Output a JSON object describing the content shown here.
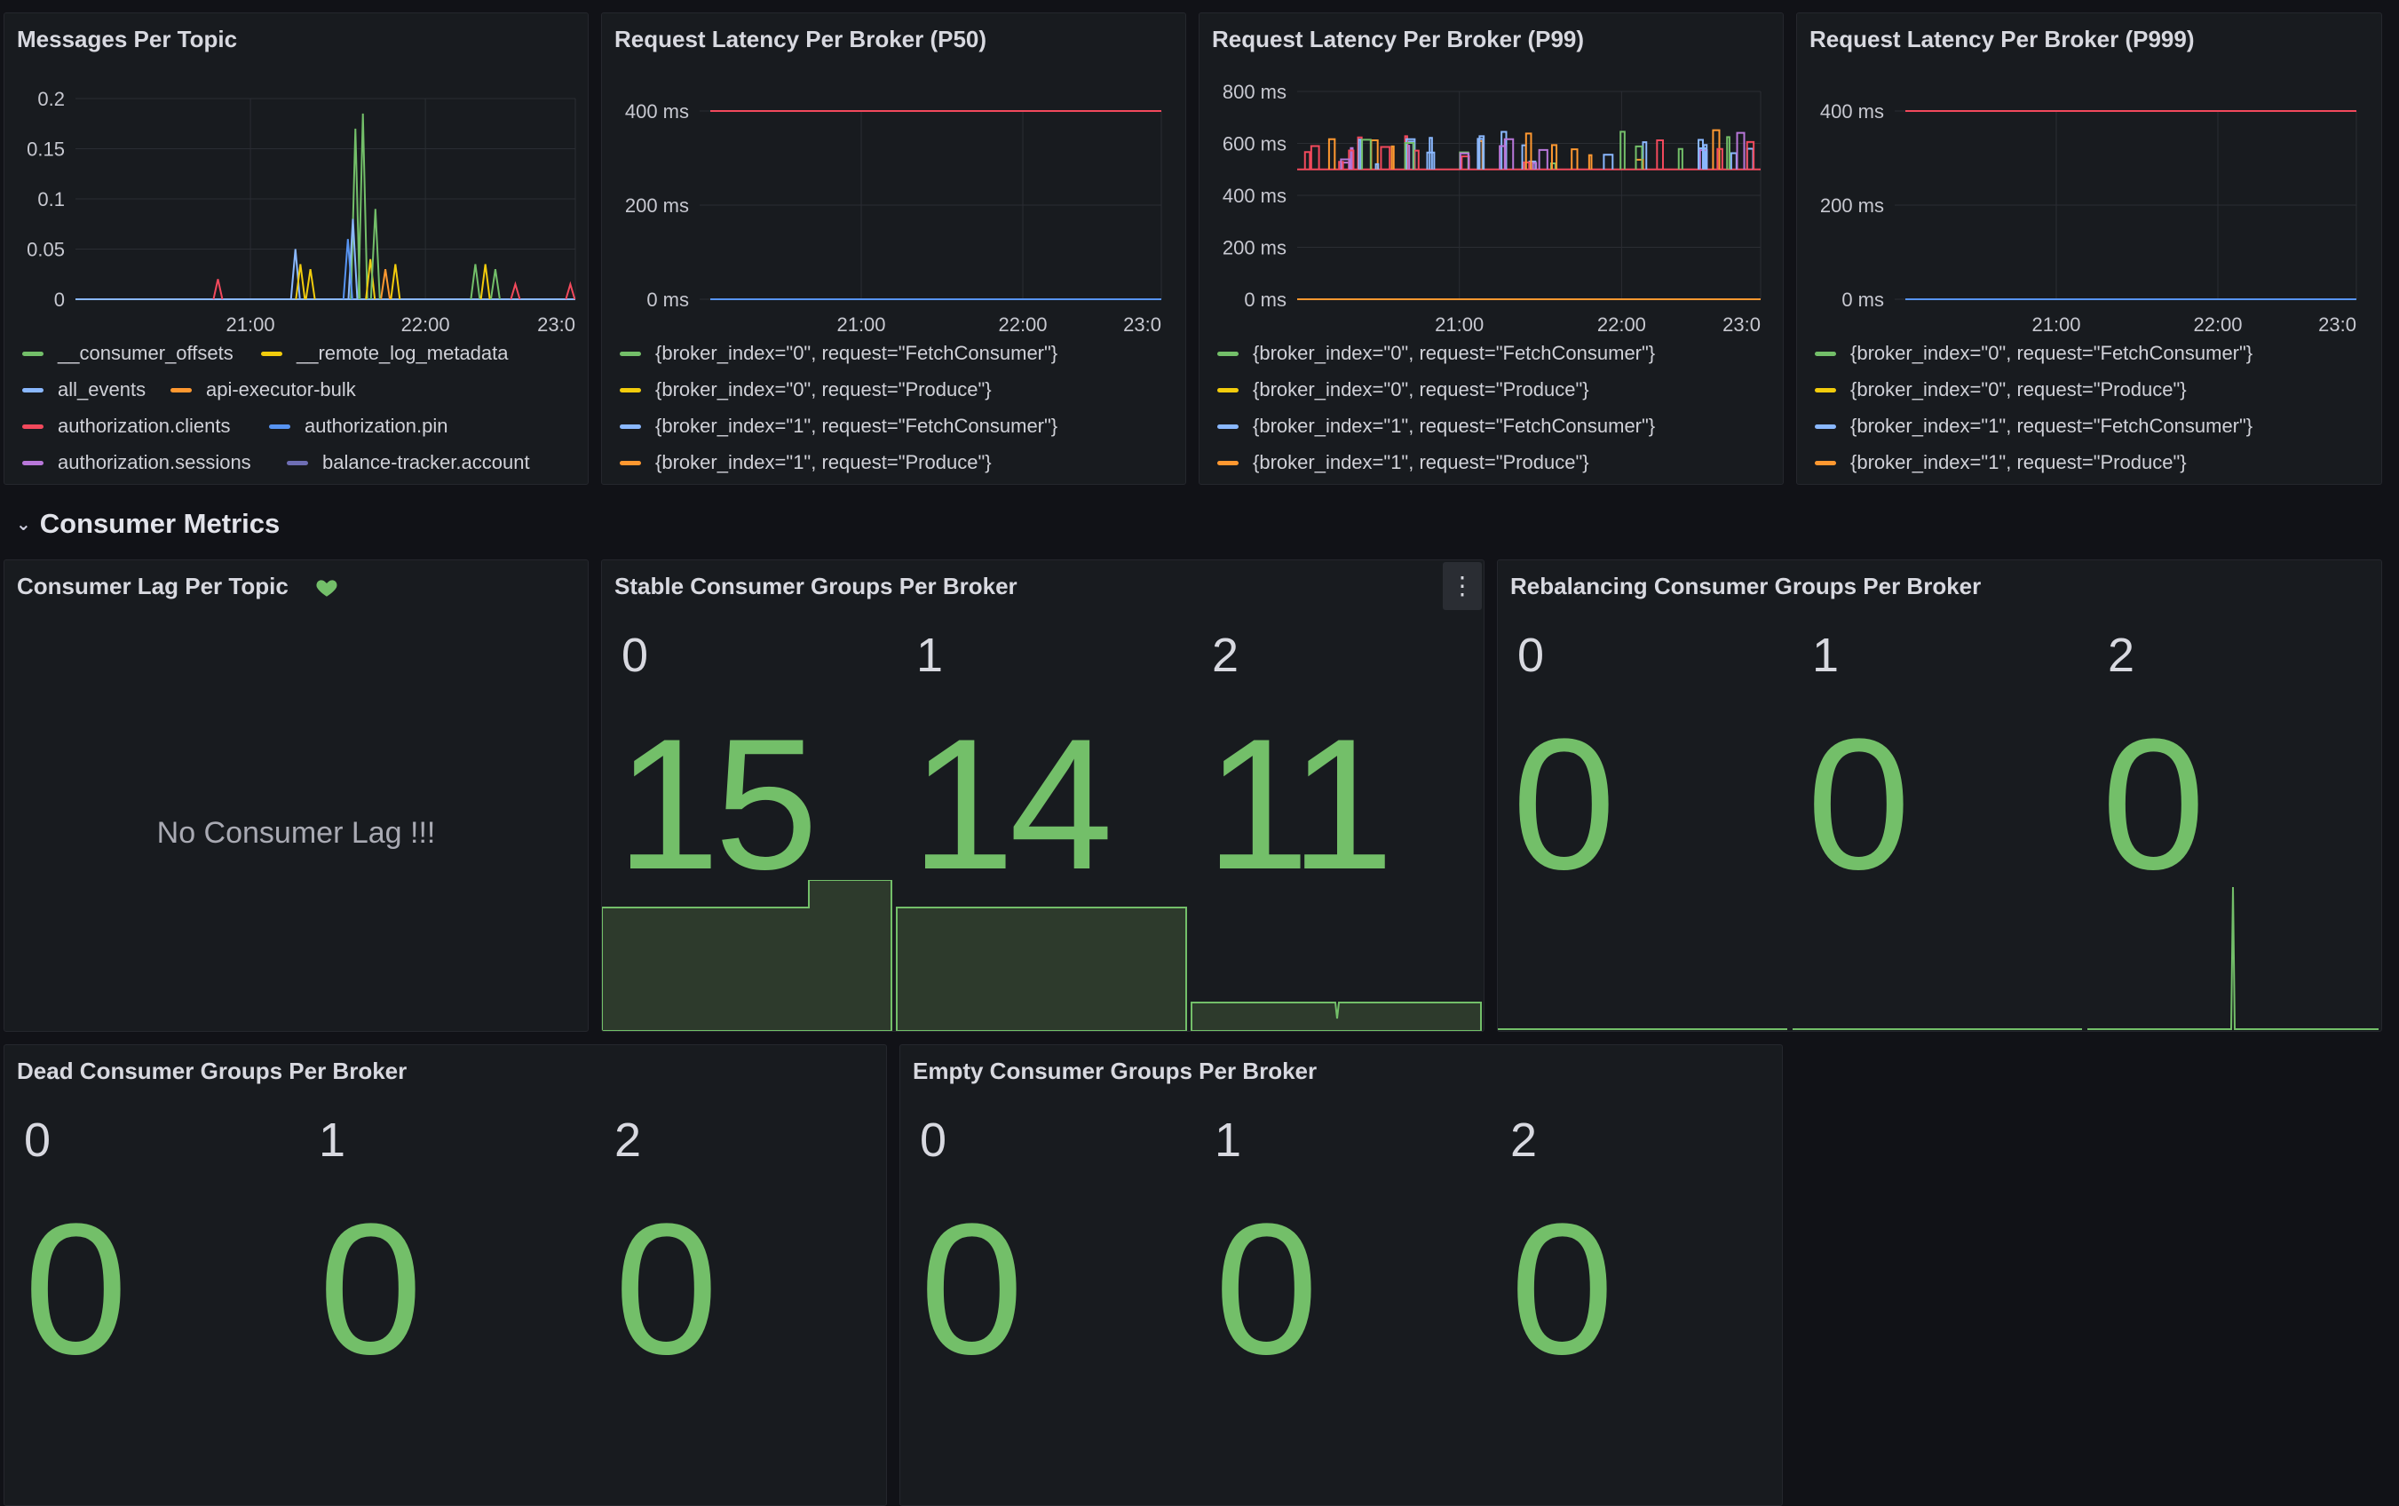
{
  "row": {
    "title": "Consumer Metrics"
  },
  "colors": {
    "green": "#73bf69",
    "yellow": "#f2cc0c",
    "blue": "#8ab8ff",
    "orange": "#ff9830",
    "red": "#f2495c",
    "purple": "#b877d9",
    "slate": "#6e6eb4"
  },
  "panels": {
    "messages_per_topic": {
      "title": "Messages Per Topic",
      "legend": [
        {
          "label": "__consumer_offsets",
          "color": "#73bf69"
        },
        {
          "label": "__remote_log_metadata",
          "color": "#f2cc0c"
        },
        {
          "label": "all_events",
          "color": "#8ab8ff"
        },
        {
          "label": "api-executor-bulk",
          "color": "#ff9830"
        },
        {
          "label": "authorization.clients",
          "color": "#f2495c"
        },
        {
          "label": "authorization.pin",
          "color": "#5794f2"
        },
        {
          "label": "authorization.sessions",
          "color": "#b877d9"
        },
        {
          "label": "balance-tracker.account",
          "color": "#6e6eb4"
        }
      ]
    },
    "p50": {
      "title": "Request Latency Per Broker (P50)",
      "legend": [
        {
          "label": "{broker_index=\"0\", request=\"FetchConsumer\"}",
          "color": "#73bf69"
        },
        {
          "label": "{broker_index=\"0\", request=\"Produce\"}",
          "color": "#f2cc0c"
        },
        {
          "label": "{broker_index=\"1\", request=\"FetchConsumer\"}",
          "color": "#8ab8ff"
        },
        {
          "label": "{broker_index=\"1\", request=\"Produce\"}",
          "color": "#ff9830"
        }
      ]
    },
    "p99": {
      "title": "Request Latency Per Broker (P99)",
      "legend": [
        {
          "label": "{broker_index=\"0\", request=\"FetchConsumer\"}",
          "color": "#73bf69"
        },
        {
          "label": "{broker_index=\"0\", request=\"Produce\"}",
          "color": "#f2cc0c"
        },
        {
          "label": "{broker_index=\"1\", request=\"FetchConsumer\"}",
          "color": "#8ab8ff"
        },
        {
          "label": "{broker_index=\"1\", request=\"Produce\"}",
          "color": "#ff9830"
        }
      ]
    },
    "p999": {
      "title": "Request Latency Per Broker (P999)",
      "legend": [
        {
          "label": "{broker_index=\"0\", request=\"FetchConsumer\"}",
          "color": "#73bf69"
        },
        {
          "label": "{broker_index=\"0\", request=\"Produce\"}",
          "color": "#f2cc0c"
        },
        {
          "label": "{broker_index=\"1\", request=\"FetchConsumer\"}",
          "color": "#8ab8ff"
        },
        {
          "label": "{broker_index=\"1\", request=\"Produce\"}",
          "color": "#ff9830"
        }
      ]
    },
    "consumer_lag": {
      "title": "Consumer Lag Per Topic",
      "message": "No Consumer Lag !!!",
      "icon": "heart-icon"
    },
    "stable": {
      "title": "Stable Consumer Groups Per Broker",
      "menu_icon": "kebab-menu-icon",
      "stats": [
        {
          "label": "0",
          "value": "15"
        },
        {
          "label": "1",
          "value": "14"
        },
        {
          "label": "2",
          "value": "11"
        }
      ]
    },
    "rebalancing": {
      "title": "Rebalancing Consumer Groups Per Broker",
      "stats": [
        {
          "label": "0",
          "value": "0"
        },
        {
          "label": "1",
          "value": "0"
        },
        {
          "label": "2",
          "value": "0"
        }
      ]
    },
    "dead": {
      "title": "Dead Consumer Groups Per Broker",
      "stats": [
        {
          "label": "0",
          "value": "0"
        },
        {
          "label": "1",
          "value": "0"
        },
        {
          "label": "2",
          "value": "0"
        }
      ]
    },
    "empty": {
      "title": "Empty Consumer Groups Per Broker",
      "stats": [
        {
          "label": "0",
          "value": "0"
        },
        {
          "label": "1",
          "value": "0"
        },
        {
          "label": "2",
          "value": "0"
        }
      ]
    }
  },
  "chart_data": [
    {
      "type": "line",
      "title": "Messages Per Topic",
      "x_ticks": [
        "21:00",
        "22:00",
        "23:0"
      ],
      "y_ticks": [
        "0.2",
        "0.15",
        "0.1",
        "0.05",
        "0"
      ],
      "ylim": [
        0,
        0.2
      ],
      "grid": true,
      "legend_position": "bottom"
    },
    {
      "type": "line",
      "title": "Request Latency Per Broker (P50)",
      "x_ticks": [
        "21:00",
        "22:00",
        "23:0"
      ],
      "y_ticks": [
        "400 ms",
        "200 ms",
        "0 ms"
      ],
      "ylim": [
        0,
        500
      ],
      "grid": true,
      "legend_position": "bottom"
    },
    {
      "type": "line",
      "title": "Request Latency Per Broker (P99)",
      "x_ticks": [
        "21:00",
        "22:00",
        "23:0"
      ],
      "y_ticks": [
        "800 ms",
        "600 ms",
        "400 ms",
        "200 ms",
        "0 ms"
      ],
      "ylim": [
        0,
        800
      ],
      "grid": true,
      "legend_position": "bottom"
    },
    {
      "type": "line",
      "title": "Request Latency Per Broker (P999)",
      "x_ticks": [
        "21:00",
        "22:00",
        "23:0"
      ],
      "y_ticks": [
        "400 ms",
        "200 ms",
        "0 ms"
      ],
      "ylim": [
        0,
        500
      ],
      "grid": true,
      "legend_position": "bottom"
    }
  ]
}
